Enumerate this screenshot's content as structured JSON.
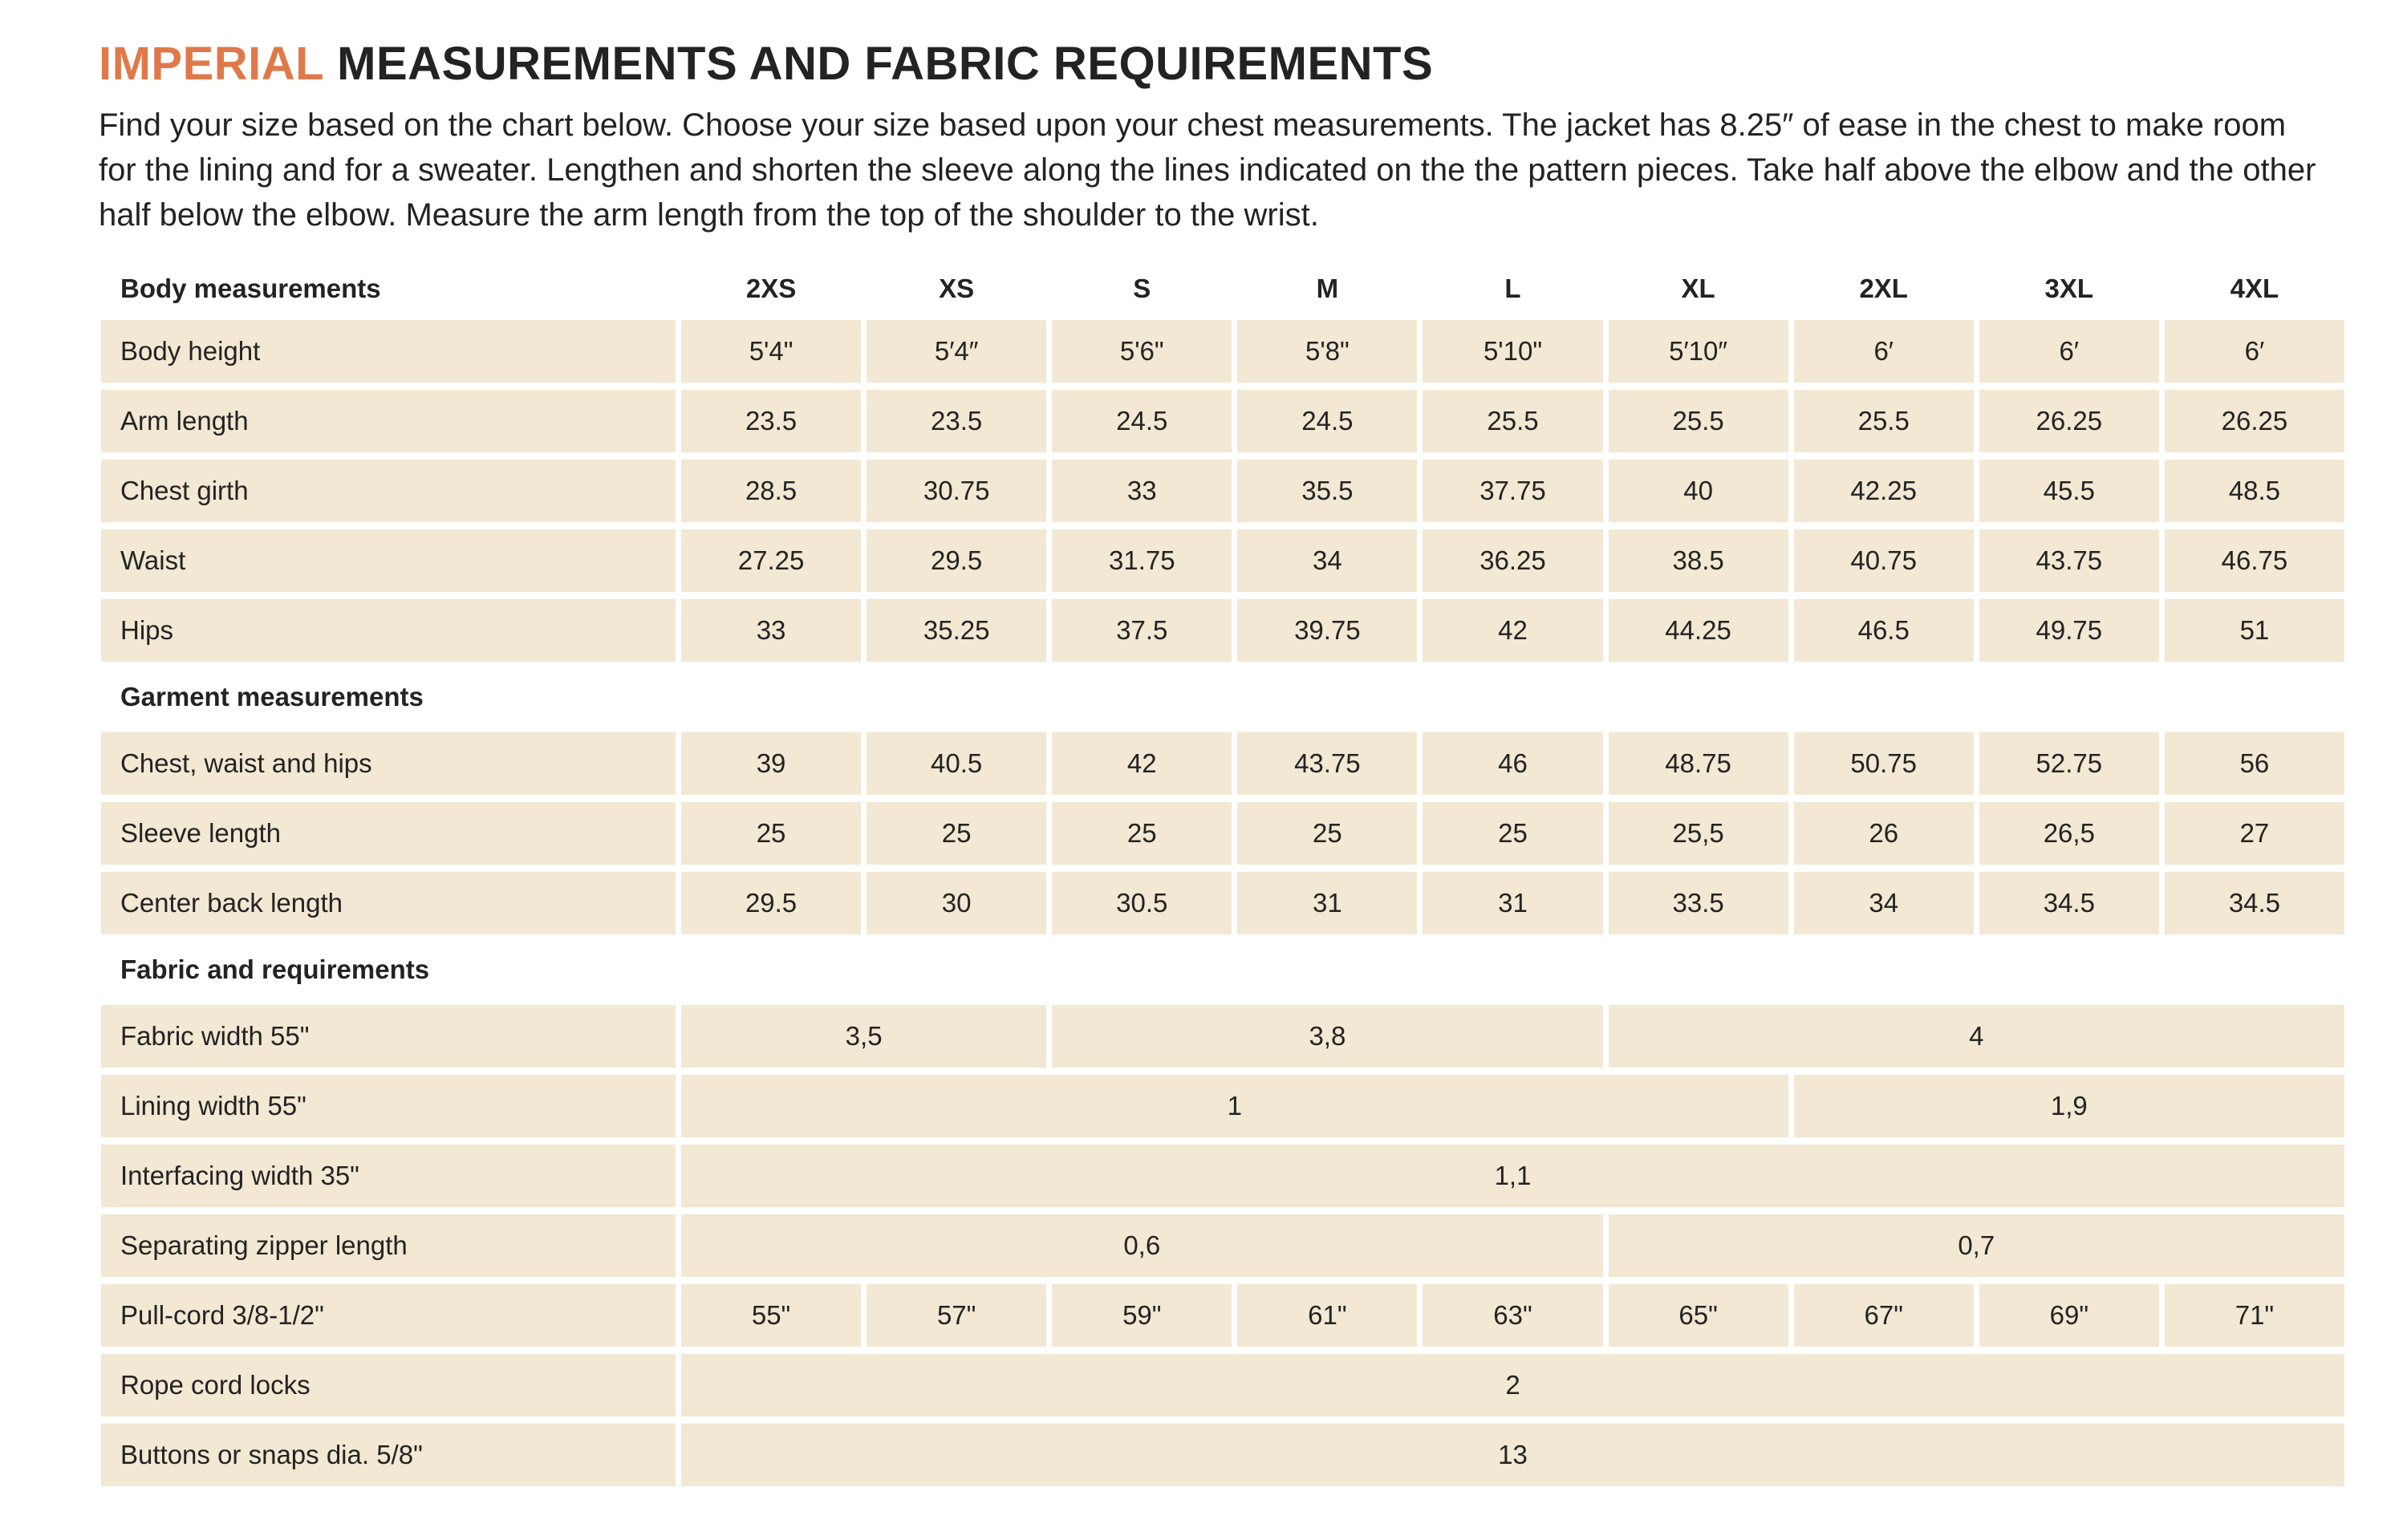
{
  "title": {
    "highlight": "IMPERIAL",
    "rest": "MEASUREMENTS AND FABRIC REQUIREMENTS"
  },
  "intro": "Find your size based on the chart below. Choose your size based upon your chest measurements. The jacket has 8.25″ of ease in the chest to make room for the lining and for a sweater. Lengthen and shorten the sleeve along the lines indicated on the the pattern pieces. Take half above the elbow and the other half below the elbow. Measure the arm length from the top of the shoulder to the wrist.",
  "colors": {
    "accent": "#e0794a",
    "text": "#232323",
    "cell_background": "#f2e8d3"
  },
  "table": {
    "header_label": "Body measurements",
    "sizes": [
      "2XS",
      "XS",
      "S",
      "M",
      "L",
      "XL",
      "2XL",
      "3XL",
      "4XL"
    ],
    "sections": [
      {
        "heading": null,
        "rows": [
          {
            "label": "Body height",
            "cells": [
              {
                "v": "5'4\"",
                "span": 1
              },
              {
                "v": "5′4″",
                "span": 1
              },
              {
                "v": "5'6\"",
                "span": 1
              },
              {
                "v": "5'8\"",
                "span": 1
              },
              {
                "v": "5'10\"",
                "span": 1
              },
              {
                "v": "5′10″",
                "span": 1
              },
              {
                "v": "6′",
                "span": 1
              },
              {
                "v": "6′",
                "span": 1
              },
              {
                "v": "6′",
                "span": 1
              }
            ]
          },
          {
            "label": "Arm length",
            "cells": [
              {
                "v": "23.5",
                "span": 1
              },
              {
                "v": "23.5",
                "span": 1
              },
              {
                "v": "24.5",
                "span": 1
              },
              {
                "v": "24.5",
                "span": 1
              },
              {
                "v": "25.5",
                "span": 1
              },
              {
                "v": "25.5",
                "span": 1
              },
              {
                "v": "25.5",
                "span": 1
              },
              {
                "v": "26.25",
                "span": 1
              },
              {
                "v": "26.25",
                "span": 1
              }
            ]
          },
          {
            "label": "Chest girth",
            "cells": [
              {
                "v": "28.5",
                "span": 1
              },
              {
                "v": "30.75",
                "span": 1
              },
              {
                "v": "33",
                "span": 1
              },
              {
                "v": "35.5",
                "span": 1
              },
              {
                "v": "37.75",
                "span": 1
              },
              {
                "v": "40",
                "span": 1
              },
              {
                "v": "42.25",
                "span": 1
              },
              {
                "v": "45.5",
                "span": 1
              },
              {
                "v": "48.5",
                "span": 1
              }
            ]
          },
          {
            "label": "Waist",
            "cells": [
              {
                "v": "27.25",
                "span": 1
              },
              {
                "v": "29.5",
                "span": 1
              },
              {
                "v": "31.75",
                "span": 1
              },
              {
                "v": "34",
                "span": 1
              },
              {
                "v": "36.25",
                "span": 1
              },
              {
                "v": "38.5",
                "span": 1
              },
              {
                "v": "40.75",
                "span": 1
              },
              {
                "v": "43.75",
                "span": 1
              },
              {
                "v": "46.75",
                "span": 1
              }
            ]
          },
          {
            "label": "Hips",
            "cells": [
              {
                "v": "33",
                "span": 1
              },
              {
                "v": "35.25",
                "span": 1
              },
              {
                "v": "37.5",
                "span": 1
              },
              {
                "v": "39.75",
                "span": 1
              },
              {
                "v": "42",
                "span": 1
              },
              {
                "v": "44.25",
                "span": 1
              },
              {
                "v": "46.5",
                "span": 1
              },
              {
                "v": "49.75",
                "span": 1
              },
              {
                "v": "51",
                "span": 1
              }
            ]
          }
        ]
      },
      {
        "heading": "Garment measurements",
        "rows": [
          {
            "label": "Chest, waist and hips",
            "cells": [
              {
                "v": "39",
                "span": 1
              },
              {
                "v": "40.5",
                "span": 1
              },
              {
                "v": "42",
                "span": 1
              },
              {
                "v": "43.75",
                "span": 1
              },
              {
                "v": "46",
                "span": 1
              },
              {
                "v": "48.75",
                "span": 1
              },
              {
                "v": "50.75",
                "span": 1
              },
              {
                "v": "52.75",
                "span": 1
              },
              {
                "v": "56",
                "span": 1
              }
            ]
          },
          {
            "label": "Sleeve length",
            "cells": [
              {
                "v": "25",
                "span": 1
              },
              {
                "v": "25",
                "span": 1
              },
              {
                "v": "25",
                "span": 1
              },
              {
                "v": "25",
                "span": 1
              },
              {
                "v": "25",
                "span": 1
              },
              {
                "v": "25,5",
                "span": 1
              },
              {
                "v": "26",
                "span": 1
              },
              {
                "v": "26,5",
                "span": 1
              },
              {
                "v": "27",
                "span": 1
              }
            ]
          },
          {
            "label": "Center back length",
            "cells": [
              {
                "v": "29.5",
                "span": 1
              },
              {
                "v": "30",
                "span": 1
              },
              {
                "v": "30.5",
                "span": 1
              },
              {
                "v": "31",
                "span": 1
              },
              {
                "v": "31",
                "span": 1
              },
              {
                "v": "33.5",
                "span": 1
              },
              {
                "v": "34",
                "span": 1
              },
              {
                "v": "34.5",
                "span": 1
              },
              {
                "v": "34.5",
                "span": 1
              }
            ]
          }
        ]
      },
      {
        "heading": "Fabric and requirements",
        "rows": [
          {
            "label": "Fabric width 55\"",
            "cells": [
              {
                "v": "3,5",
                "span": 2
              },
              {
                "v": "3,8",
                "span": 3
              },
              {
                "v": "4",
                "span": 4
              }
            ]
          },
          {
            "label": "Lining width 55\"",
            "cells": [
              {
                "v": "1",
                "span": 6
              },
              {
                "v": "1,9",
                "span": 3
              }
            ]
          },
          {
            "label": "Interfacing width 35\"",
            "cells": [
              {
                "v": "1,1",
                "span": 9
              }
            ]
          },
          {
            "label": "Separating zipper length",
            "cells": [
              {
                "v": "0,6",
                "span": 5
              },
              {
                "v": "0,7",
                "span": 4
              }
            ]
          },
          {
            "label": "Pull-cord 3/8-1/2\"",
            "cells": [
              {
                "v": "55\"",
                "span": 1
              },
              {
                "v": "57\"",
                "span": 1
              },
              {
                "v": "59\"",
                "span": 1
              },
              {
                "v": "61\"",
                "span": 1
              },
              {
                "v": "63\"",
                "span": 1
              },
              {
                "v": "65\"",
                "span": 1
              },
              {
                "v": "67\"",
                "span": 1
              },
              {
                "v": "69\"",
                "span": 1
              },
              {
                "v": "71\"",
                "span": 1
              }
            ]
          },
          {
            "label": "Rope cord locks",
            "cells": [
              {
                "v": "2",
                "span": 9
              }
            ]
          },
          {
            "label": "Buttons or snaps dia. 5/8\"",
            "cells": [
              {
                "v": "13",
                "span": 9
              }
            ]
          }
        ]
      }
    ]
  }
}
